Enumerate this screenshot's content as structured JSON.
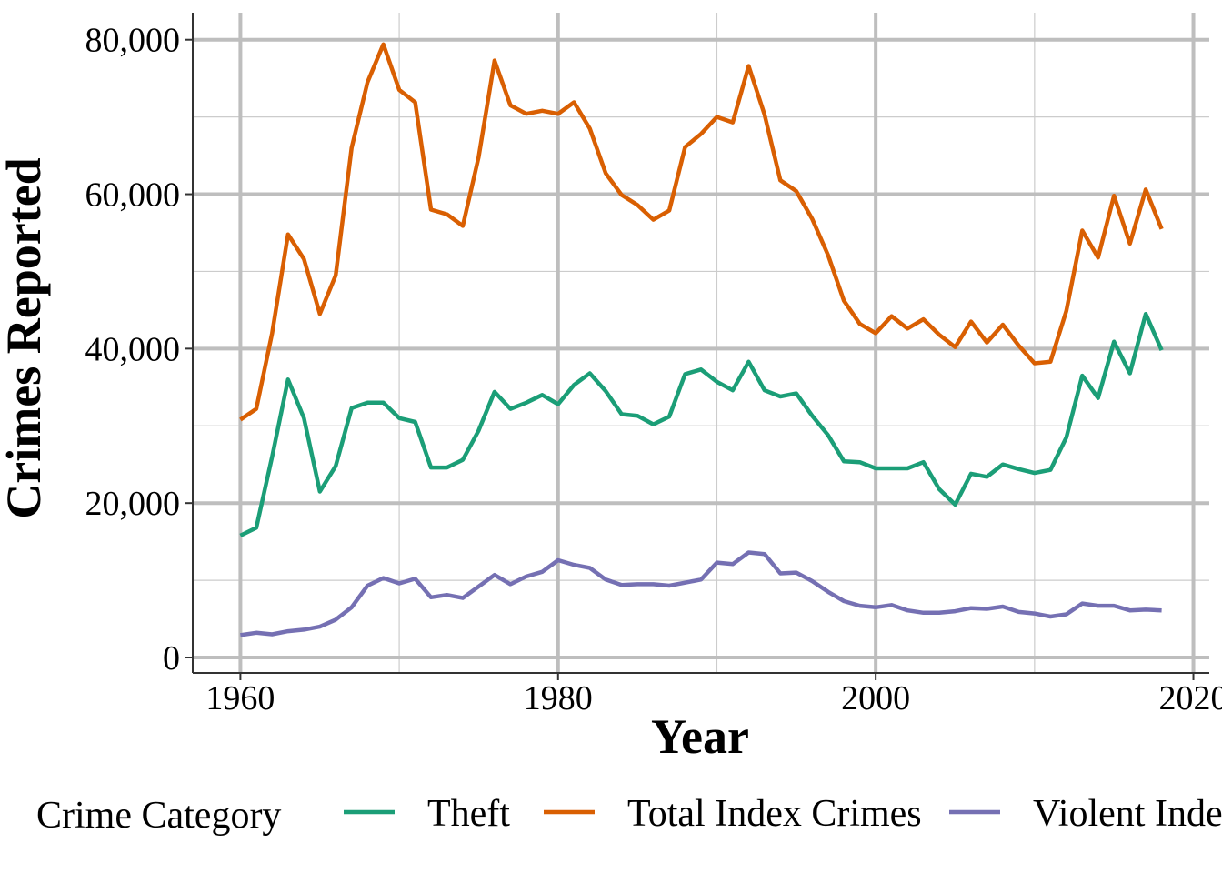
{
  "chart_data": {
    "type": "line",
    "title": "",
    "xlabel": "Year",
    "ylabel": "Crimes Reported",
    "xlim": [
      1957,
      2021
    ],
    "ylim": [
      -2000,
      83500
    ],
    "x_ticks": [
      1960,
      1980,
      2000,
      2020
    ],
    "x_tick_labels": [
      "1960",
      "1980",
      "2000",
      "2020"
    ],
    "y_ticks": [
      0,
      20000,
      40000,
      60000,
      80000
    ],
    "y_tick_labels": [
      "0",
      "20,000",
      "40,000",
      "60,000",
      "80,000"
    ],
    "grid": true,
    "legend_placement": "bottom",
    "legend_title": "Crime Category",
    "x": [
      1960,
      1961,
      1962,
      1963,
      1964,
      1965,
      1966,
      1967,
      1968,
      1969,
      1970,
      1971,
      1972,
      1973,
      1974,
      1975,
      1976,
      1977,
      1978,
      1979,
      1980,
      1981,
      1982,
      1983,
      1984,
      1985,
      1986,
      1987,
      1988,
      1989,
      1990,
      1991,
      1992,
      1993,
      1994,
      1995,
      1996,
      1997,
      1998,
      1999,
      2000,
      2001,
      2002,
      2003,
      2004,
      2005,
      2006,
      2007,
      2008,
      2009,
      2010,
      2011,
      2012,
      2013,
      2014,
      2015,
      2016,
      2017,
      2018
    ],
    "series": [
      {
        "name": "Theft",
        "color": "#1b9e77",
        "values": [
          15800,
          16800,
          26000,
          36000,
          31000,
          21500,
          24800,
          32300,
          33000,
          33000,
          31000,
          30500,
          24600,
          24600,
          25600,
          29400,
          34400,
          32200,
          33000,
          34000,
          32800,
          35300,
          36800,
          34500,
          31500,
          31300,
          30200,
          31200,
          36700,
          37300,
          35700,
          34600,
          38300,
          34600,
          33800,
          34200,
          31300,
          28800,
          25400,
          25300,
          24500,
          24500,
          24500,
          25300,
          21800,
          19800,
          23800,
          23400,
          25000,
          24400,
          23900,
          24300,
          28500,
          36500,
          33600,
          40900,
          36800,
          44500,
          39800
        ]
      },
      {
        "name": "Total Index Crimes",
        "color": "#d95f02",
        "values": [
          30800,
          32200,
          42000,
          54800,
          51600,
          44500,
          49500,
          66000,
          74500,
          79400,
          73500,
          71900,
          58000,
          57400,
          55900,
          64800,
          77300,
          71500,
          70400,
          70800,
          70400,
          71900,
          68500,
          62700,
          59900,
          58600,
          56700,
          57900,
          66100,
          67800,
          70000,
          69300,
          76600,
          70300,
          61800,
          60400,
          56800,
          52100,
          46200,
          43200,
          42000,
          44200,
          42600,
          43800,
          41800,
          40200,
          43500,
          40800,
          43100,
          40400,
          38100,
          38300,
          44900,
          55300,
          51800,
          59800,
          53600,
          60600,
          55500
        ]
      },
      {
        "name": "Violent Index Crimes",
        "color": "#7570b3",
        "values": [
          2900,
          3200,
          3000,
          3400,
          3600,
          4000,
          4900,
          6500,
          9300,
          10300,
          9600,
          10200,
          7800,
          8100,
          7700,
          9200,
          10700,
          9500,
          10500,
          11100,
          12600,
          12000,
          11600,
          10100,
          9400,
          9500,
          9500,
          9300,
          9700,
          10100,
          12300,
          12100,
          13600,
          13400,
          10900,
          11000,
          9900,
          8500,
          7300,
          6700,
          6500,
          6800,
          6100,
          5800,
          5800,
          6000,
          6400,
          6300,
          6600,
          5900,
          5700,
          5300,
          5600,
          7000,
          6700,
          6700,
          6100,
          6200,
          6100
        ]
      }
    ]
  }
}
